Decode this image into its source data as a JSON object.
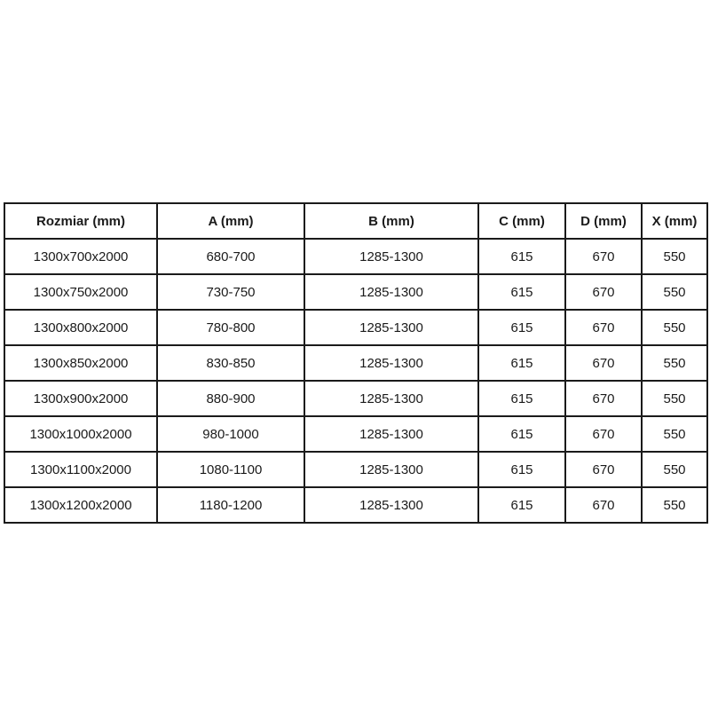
{
  "table": {
    "columns": [
      "Rozmiar (mm)",
      "A (mm)",
      "B (mm)",
      "C (mm)",
      "D (mm)",
      "X (mm)"
    ],
    "rows": [
      [
        "1300x700x2000",
        "680-700",
        "1285-1300",
        "615",
        "670",
        "550"
      ],
      [
        "1300x750x2000",
        "730-750",
        "1285-1300",
        "615",
        "670",
        "550"
      ],
      [
        "1300x800x2000",
        "780-800",
        "1285-1300",
        "615",
        "670",
        "550"
      ],
      [
        "1300x850x2000",
        "830-850",
        "1285-1300",
        "615",
        "670",
        "550"
      ],
      [
        "1300x900x2000",
        "880-900",
        "1285-1300",
        "615",
        "670",
        "550"
      ],
      [
        "1300x1000x2000",
        "980-1000",
        "1285-1300",
        "615",
        "670",
        "550"
      ],
      [
        "1300x1100x2000",
        "1080-1100",
        "1285-1300",
        "615",
        "670",
        "550"
      ],
      [
        "1300x1200x2000",
        "1180-1200",
        "1285-1300",
        "615",
        "670",
        "550"
      ]
    ]
  },
  "chart_data": {
    "type": "table",
    "title": "",
    "columns": [
      "Rozmiar (mm)",
      "A (mm)",
      "B (mm)",
      "C (mm)",
      "D (mm)",
      "X (mm)"
    ],
    "rows": [
      [
        "1300x700x2000",
        "680-700",
        "1285-1300",
        "615",
        "670",
        "550"
      ],
      [
        "1300x750x2000",
        "730-750",
        "1285-1300",
        "615",
        "670",
        "550"
      ],
      [
        "1300x800x2000",
        "780-800",
        "1285-1300",
        "615",
        "670",
        "550"
      ],
      [
        "1300x850x2000",
        "830-850",
        "1285-1300",
        "615",
        "670",
        "550"
      ],
      [
        "1300x900x2000",
        "880-900",
        "1285-1300",
        "615",
        "670",
        "550"
      ],
      [
        "1300x1000x2000",
        "980-1000",
        "1285-1300",
        "615",
        "670",
        "550"
      ],
      [
        "1300x1100x2000",
        "1080-1100",
        "1285-1300",
        "615",
        "670",
        "550"
      ],
      [
        "1300x1200x2000",
        "1180-1200",
        "1285-1300",
        "615",
        "670",
        "550"
      ]
    ]
  },
  "colors": {
    "border": "#1a1a1a",
    "text": "#1b1b1b",
    "background": "#ffffff"
  }
}
